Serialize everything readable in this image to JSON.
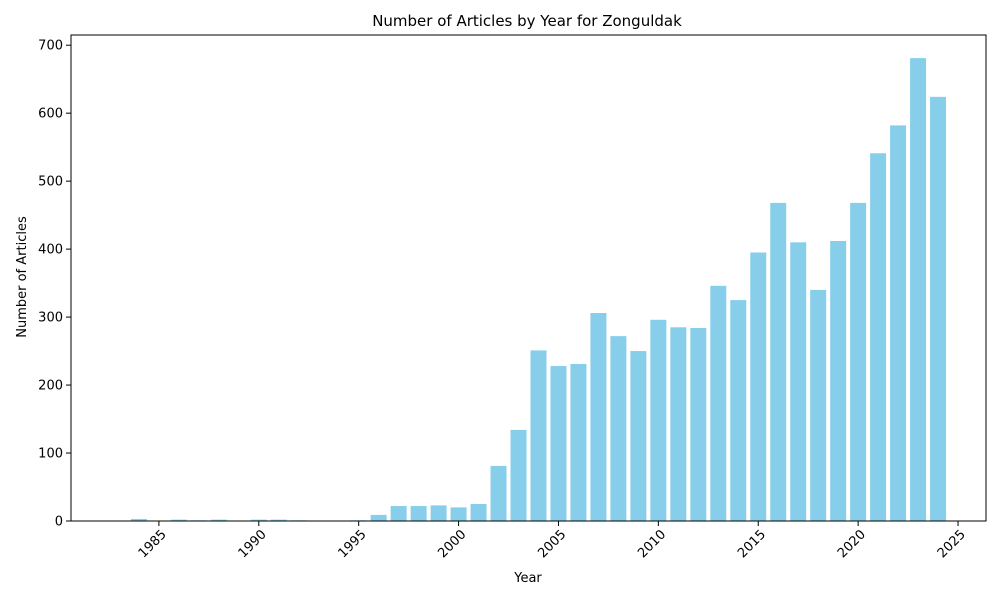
{
  "chart_data": {
    "type": "bar",
    "title": "Number of Articles by Year for Zonguldak",
    "xlabel": "Year",
    "ylabel": "Number of Articles",
    "x": [
      1984,
      1985,
      1986,
      1987,
      1988,
      1989,
      1990,
      1991,
      1992,
      1993,
      1994,
      1995,
      1996,
      1997,
      1998,
      1999,
      2000,
      2001,
      2002,
      2003,
      2004,
      2005,
      2006,
      2007,
      2008,
      2009,
      2010,
      2011,
      2012,
      2013,
      2014,
      2015,
      2016,
      2017,
      2018,
      2019,
      2020,
      2021,
      2022,
      2023,
      2024
    ],
    "values": [
      3,
      0,
      2,
      1,
      2,
      0,
      2,
      2,
      1,
      0,
      0,
      1,
      9,
      22,
      22,
      23,
      20,
      25,
      81,
      134,
      251,
      228,
      231,
      306,
      272,
      250,
      296,
      285,
      284,
      346,
      325,
      395,
      468,
      410,
      340,
      412,
      468,
      541,
      582,
      681,
      624
    ],
    "xlim": [
      1980.6,
      2026.4
    ],
    "ylim": [
      0,
      715
    ],
    "x_ticks": [
      1985,
      1990,
      1995,
      2000,
      2005,
      2010,
      2015,
      2020,
      2025
    ],
    "y_ticks": [
      0,
      100,
      200,
      300,
      400,
      500,
      600,
      700
    ],
    "bar_color": "#87CEEB",
    "grid": false,
    "legend": "none"
  }
}
